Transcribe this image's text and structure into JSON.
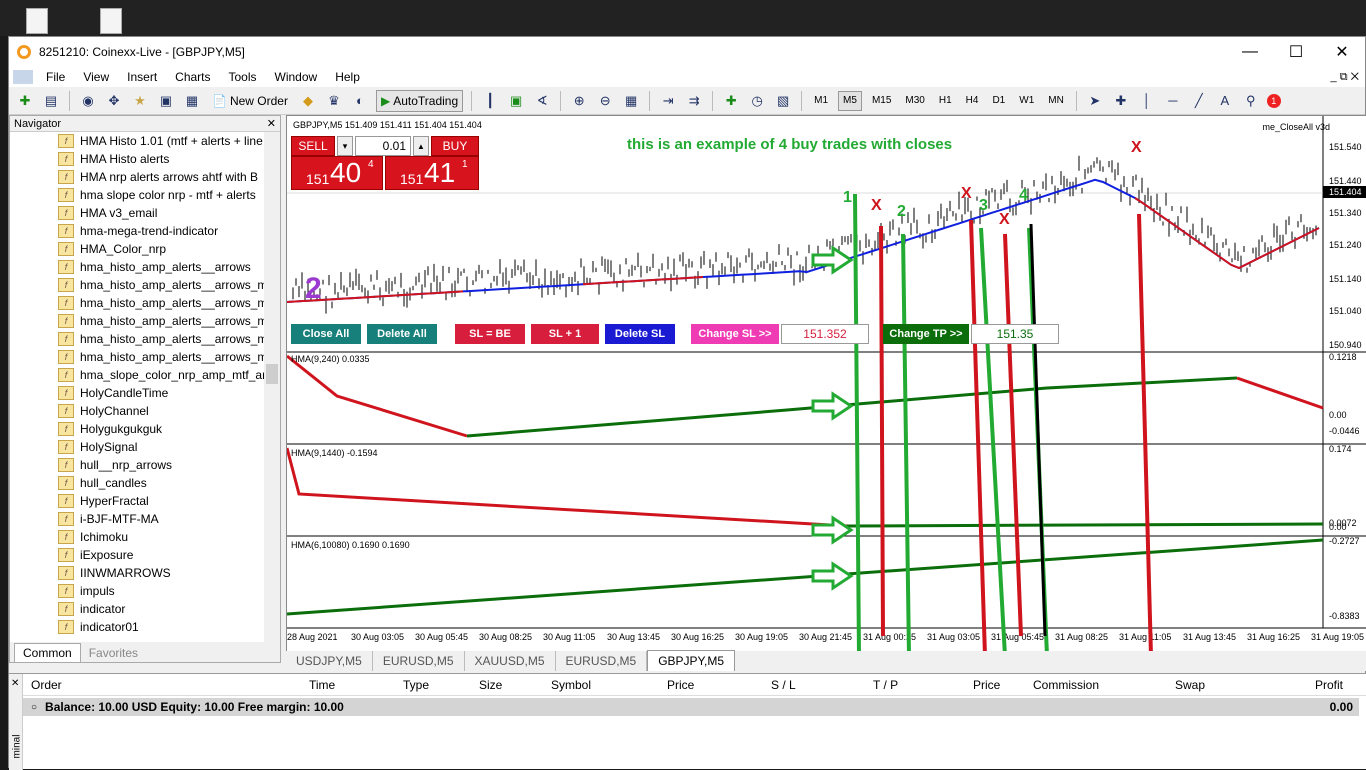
{
  "window": {
    "title": "8251210: Coinexx-Live - [GBPJPY,M5]"
  },
  "menu": [
    "File",
    "View",
    "Insert",
    "Charts",
    "Tools",
    "Window",
    "Help"
  ],
  "toolbar": {
    "new_order": "New Order",
    "autotrading": "AutoTrading",
    "timeframes": [
      "M1",
      "M5",
      "M15",
      "M30",
      "H1",
      "H4",
      "D1",
      "W1",
      "MN"
    ],
    "active_timeframe": "M5",
    "notif_count": "1"
  },
  "navigator": {
    "title": "Navigator",
    "items": [
      "HMA Histo 1.01 (mtf + alerts + line",
      "HMA Histo alerts",
      "HMA nrp alerts  arrows ahtf with B",
      "hma slope color nrp - mtf + alerts",
      "HMA v3_email",
      "hma-mega-trend-indicator",
      "HMA_Color_nrp",
      "hma_histo_amp_alerts__arrows",
      "hma_histo_amp_alerts__arrows_mt",
      "hma_histo_amp_alerts__arrows_mt",
      "hma_histo_amp_alerts__arrows_mt",
      "hma_histo_amp_alerts__arrows_mt",
      "hma_histo_amp_alerts__arrows_mt",
      "hma_slope_color_nrp_amp_mtf_ar",
      "HolyCandleTime",
      "HolyChannel",
      "Holygukgukguk",
      "HolySignal",
      "hull__nrp_arrows",
      "hull_candles",
      "HyperFractal",
      "i-BJF-MTF-MA",
      "Ichimoku",
      "iExposure",
      "IINWMARROWS",
      "impuls",
      "indicator",
      "indicator01"
    ],
    "tabs": [
      "Common",
      "Favorites"
    ]
  },
  "chart": {
    "header": "GBPJPY,M5  151.409 151.411 151.404 151.404",
    "ea_name": "me_CloseAll v3d",
    "annotation": "this is an example of 4 buy trades with closes",
    "trade_panel": {
      "sell": "SELL",
      "buy": "BUY",
      "lot": "0.01",
      "bid_big": "40",
      "bid_small": "151",
      "bid_sup": "4",
      "ask_big": "41",
      "ask_small": "151",
      "ask_sup": "1"
    },
    "buttons": {
      "close_all": "Close All",
      "delete_all": "Delete All",
      "sl_be": "SL = BE",
      "sl_plus": "SL + 1",
      "delete_sl": "Delete SL",
      "change_sl": "Change SL >>",
      "sl_value": "151.352",
      "change_tp": "Change TP >>",
      "tp_value": "151.35"
    },
    "price_axis": [
      "151.540",
      "151.440",
      "151.404",
      "151.340",
      "151.240",
      "151.140",
      "151.040",
      "150.940"
    ],
    "current_price": "151.404",
    "panes": [
      {
        "label": "HMA(9,240) 0.0335",
        "axis": [
          "0.1218",
          "0.00",
          "-0.0446"
        ]
      },
      {
        "label": "HMA(9,1440) -0.1594",
        "axis": [
          "0.174",
          "0.0072",
          "0.00"
        ]
      },
      {
        "label": "HMA(6,10080) 0.1690 0.1690",
        "axis": [
          "-0.2727",
          "-0.8383"
        ]
      }
    ],
    "time_axis": [
      "28 Aug 2021",
      "30 Aug 03:05",
      "30 Aug 05:45",
      "30 Aug 08:25",
      "30 Aug 11:05",
      "30 Aug 13:45",
      "30 Aug 16:25",
      "30 Aug 19:05",
      "30 Aug 21:45",
      "31 Aug 00:25",
      "31 Aug 03:05",
      "31 Aug 05:45",
      "31 Aug 08:25",
      "31 Aug 11:05",
      "31 Aug 13:45",
      "31 Aug 16:25",
      "31 Aug 19:05"
    ],
    "marks": {
      "two": "2",
      "n1": "1",
      "n2": "2",
      "n3": "3",
      "n4": "4",
      "x": "X"
    },
    "colors": {
      "buy_red": "#d0141e",
      "ma_blue": "#1020e0",
      "trend_green": "#1a8c1a",
      "note_green": "#22aa33"
    }
  },
  "chart_tabs": [
    "USDJPY,M5",
    "EURUSD,M5",
    "XAUUSD,M5",
    "EURUSD,M5",
    "GBPJPY,M5"
  ],
  "terminal": {
    "columns": [
      "Order",
      "Time",
      "Type",
      "Size",
      "Symbol",
      "Price",
      "S / L",
      "T / P",
      "Price",
      "Commission",
      "Swap",
      "Profit"
    ],
    "balance": "Balance: 10.00 USD  Equity: 10.00  Free margin: 10.00",
    "profit": "0.00",
    "side_label": "minal"
  }
}
